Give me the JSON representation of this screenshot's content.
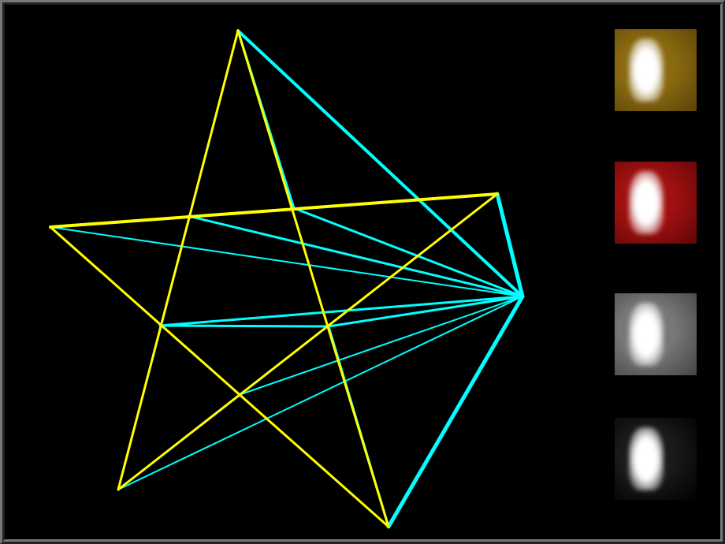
{
  "colors": {
    "star": "#ffff00",
    "projection": "#00ffff",
    "background": "#000000",
    "frame": "#777777"
  },
  "swatches": [
    {
      "name": "gold",
      "color": "#8a6a10",
      "edge": "#5a4208"
    },
    {
      "name": "red",
      "color": "#a01010",
      "edge": "#600606"
    },
    {
      "name": "gray",
      "color": "#777777",
      "edge": "#444444"
    },
    {
      "name": "black",
      "color": "#1a1a1a",
      "edge": "#000000"
    }
  ]
}
